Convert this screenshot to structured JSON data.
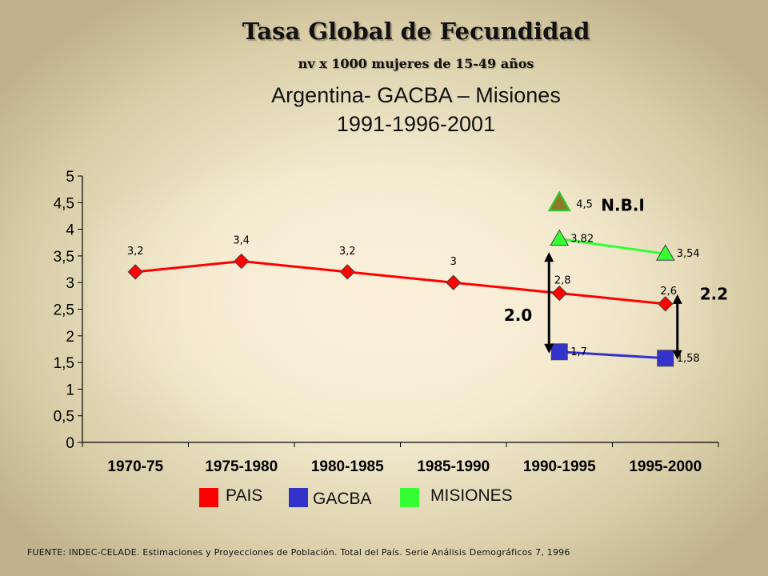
{
  "title": "Tasa Global de Fecundidad",
  "subtitle": "nv x 1000 mujeres de 15-49 años",
  "heading_line1": "Argentina- GACBA – Misiones",
  "heading_line2": "1991-1996-2001",
  "source": "FUENTE: INDEC-CELADE. Estimaciones y Proyecciones de Población. Total del País. Serie Análisis Demográficos 7, 1996",
  "chart_data": {
    "type": "line",
    "categories": [
      "1970-75",
      "1975-1980",
      "1980-1985",
      "1985-1990",
      "1990-1995",
      "1995-2000"
    ],
    "ylim": [
      0,
      5
    ],
    "y_ticks": [
      "0",
      "0,5",
      "1",
      "1,5",
      "2",
      "2,5",
      "3",
      "3,5",
      "4",
      "4,5",
      "5"
    ],
    "grid": false,
    "legend_position": "bottom",
    "series": [
      {
        "name": "PAIS",
        "color": "#ff0000",
        "marker": "diamond",
        "values": [
          3.2,
          3.4,
          3.2,
          3.0,
          2.8,
          2.6
        ],
        "labels": [
          "3,2",
          "3,4",
          "3,2",
          "3",
          "2,8",
          "2,6"
        ]
      },
      {
        "name": "GACBA",
        "color": "#3333cc",
        "marker": "square",
        "values": [
          null,
          null,
          null,
          null,
          1.7,
          1.58
        ],
        "labels": [
          "",
          "",
          "",
          "",
          "1,7",
          "1,58"
        ]
      },
      {
        "name": "MISIONES",
        "color": "#33ff33",
        "marker": "triangle",
        "values": [
          null,
          null,
          null,
          null,
          3.82,
          3.54
        ],
        "labels": [
          "",
          "",
          "",
          "",
          "3,82",
          "3,54"
        ]
      }
    ],
    "annotations": {
      "nbi_value": 4.5,
      "nbi_value_label": "4,5",
      "nbi_label": "N.B.I",
      "nbi_color": "#8b7a2a",
      "gap_1990": "2.0",
      "gap_1995": "2.2"
    }
  }
}
